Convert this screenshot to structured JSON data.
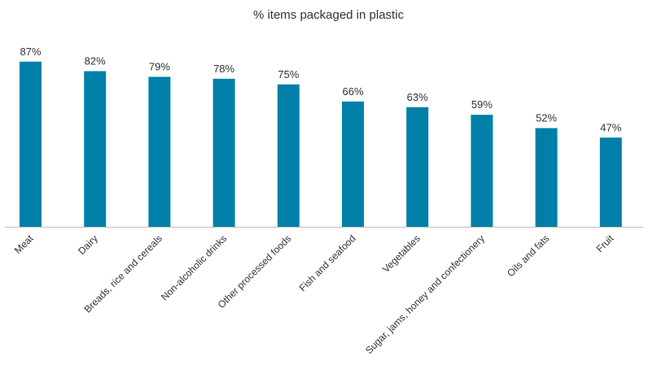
{
  "chart_data": {
    "type": "bar",
    "title": "% items packaged in plastic",
    "xlabel": "",
    "ylabel": "",
    "ylim": [
      0,
      100
    ],
    "grid": false,
    "bar_color": "#0080A8",
    "axis_color": "#BFBFBF",
    "categories": [
      "Meat",
      "Dairy",
      "Breads, rice and cereals",
      "Non-alcoholic drinks",
      "Other processed foods",
      "Fish and seafood",
      "Vegetables",
      "Sugar, jams, honey and confectionery",
      "Oils and fats",
      "Fruit"
    ],
    "values": [
      87,
      82,
      79,
      78,
      75,
      66,
      63,
      59,
      52,
      47
    ],
    "data_labels": [
      "87%",
      "82%",
      "79%",
      "78%",
      "75%",
      "66%",
      "63%",
      "59%",
      "52%",
      "47%"
    ]
  }
}
